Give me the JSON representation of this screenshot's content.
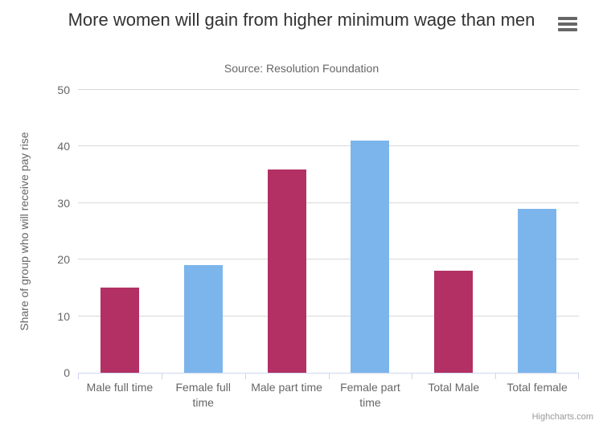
{
  "credits": "Highcharts.com",
  "chart_data": {
    "type": "bar",
    "title": "More women will gain from higher minimum wage than men",
    "subtitle": "Source: Resolution Foundation",
    "categories": [
      "Male full time",
      "Female full time",
      "Male part time",
      "Female part time",
      "Total Male",
      "Total female"
    ],
    "values": [
      15,
      19,
      36,
      41,
      18,
      29
    ],
    "bar_colors": [
      "#b23064",
      "#7cb5ec",
      "#b23064",
      "#7cb5ec",
      "#b23064",
      "#7cb5ec"
    ],
    "xlabel": "",
    "ylabel": "Share of group who will receive pay rise",
    "ylim": [
      0,
      50
    ],
    "yticks": [
      0,
      10,
      20,
      30,
      40,
      50
    ],
    "grid": true,
    "legend": false,
    "colors": {
      "male_bar": "#b23064",
      "female_bar": "#7cb5ec",
      "gridline": "#d8d8d8",
      "axis_line": "#ccd6eb",
      "title_text": "#333333",
      "label_text": "#666666",
      "credits_text": "#999999"
    }
  }
}
